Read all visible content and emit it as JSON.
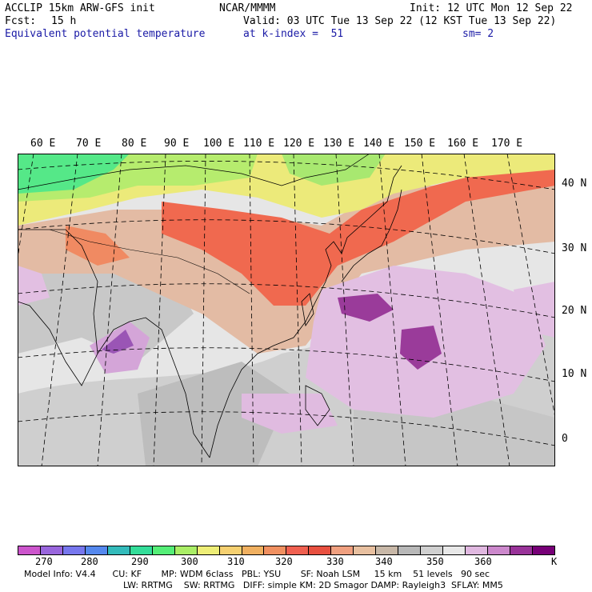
{
  "header": {
    "model": "ACCLIP 15km ARW-GFS init",
    "center": "NCAR/MMMM",
    "init": "Init: 12 UTC Mon 12 Sep 22",
    "fcst_label": "Fcst:",
    "fcst_value": "15 h",
    "valid": "Valid: 03 UTC Tue 13 Sep 22 (12 KST Tue 13 Sep 22)",
    "field": "Equivalent potential temperature",
    "level": "at k-index =  51",
    "smooth": "sm= 2"
  },
  "map": {
    "lon_labels": [
      "60 E",
      "70 E",
      "80 E",
      "90 E",
      "100 E",
      "110 E",
      "120 E",
      "130 E",
      "140 E",
      "150 E",
      "160 E",
      "170 E"
    ],
    "lat_labels": [
      "40 N",
      "30 N",
      "20 N",
      "10 N",
      "0"
    ]
  },
  "colorbar": {
    "colors": [
      "#cc55cc",
      "#9966dd",
      "#7777ee",
      "#5588ee",
      "#33bbbb",
      "#33dd99",
      "#55ee77",
      "#aaee66",
      "#eeee77",
      "#f5d070",
      "#f0b060",
      "#f09060",
      "#f06050",
      "#e85040",
      "#f0a080",
      "#e8c0a0",
      "#c8b8a8",
      "#b8b8b8",
      "#d0d0d0",
      "#e8e8e8",
      "#e0b8e0",
      "#cc88cc",
      "#993399",
      "#770077"
    ],
    "labels": [
      "270",
      "280",
      "290",
      "300",
      "310",
      "320",
      "330",
      "340",
      "350",
      "360"
    ],
    "unit": "K"
  },
  "footer": {
    "line1": "Model Info: V4.4      CU: KF       MP: WDM 6class   PBL: YSU       SF: Noah LSM     15 km    51 levels   90 sec",
    "line2": "LW: RRTMG    SW: RRTMG   DIFF: simple KM: 2D Smagor DAMP: Rayleigh3  SFLAY: MM5"
  }
}
